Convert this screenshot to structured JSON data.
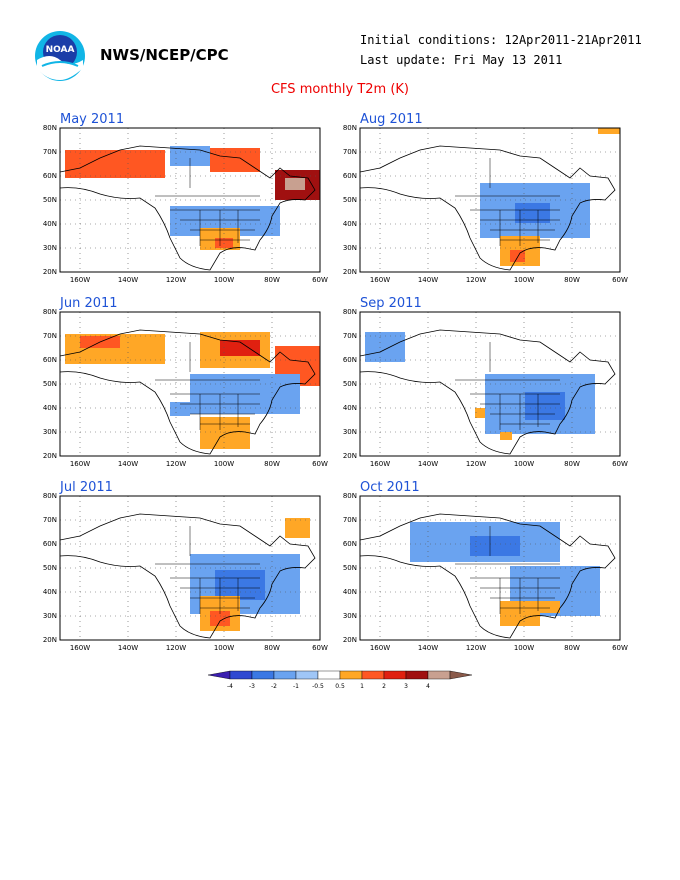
{
  "header": {
    "logo_text": "NOAA",
    "org": "NWS/NCEP/CPC",
    "initial_conditions": "Initial conditions: 12Apr2011-21Apr2011",
    "last_update": "Last update: Fri May 13 2011"
  },
  "title": "CFS monthly T2m (K)",
  "axes": {
    "lat_labels": [
      "80N",
      "70N",
      "60N",
      "50N",
      "40N",
      "30N",
      "20N"
    ],
    "lon_labels": [
      "160W",
      "140W",
      "120W",
      "100W",
      "80W",
      "60W"
    ]
  },
  "panels": [
    {
      "title": "May 2011"
    },
    {
      "title": "Aug 2011"
    },
    {
      "title": "Jun 2011"
    },
    {
      "title": "Sep 2011"
    },
    {
      "title": "Jul 2011"
    },
    {
      "title": "Oct 2011"
    }
  ],
  "colorbar": {
    "labels": [
      "-4",
      "-3",
      "-2",
      "-1",
      "-0.5",
      "0.5",
      "1",
      "2",
      "3",
      "4"
    ],
    "colors": [
      "#3b1fb0",
      "#2f49d1",
      "#3b78e4",
      "#6aa3f0",
      "#9fc6f7",
      "#ffffff",
      "#ffa726",
      "#ff5722",
      "#e02010",
      "#a01010",
      "#c8a090",
      "#8a5a4a"
    ]
  },
  "colors": {
    "title_red": "#e00000",
    "panel_title_blue": "#1e52d6"
  }
}
